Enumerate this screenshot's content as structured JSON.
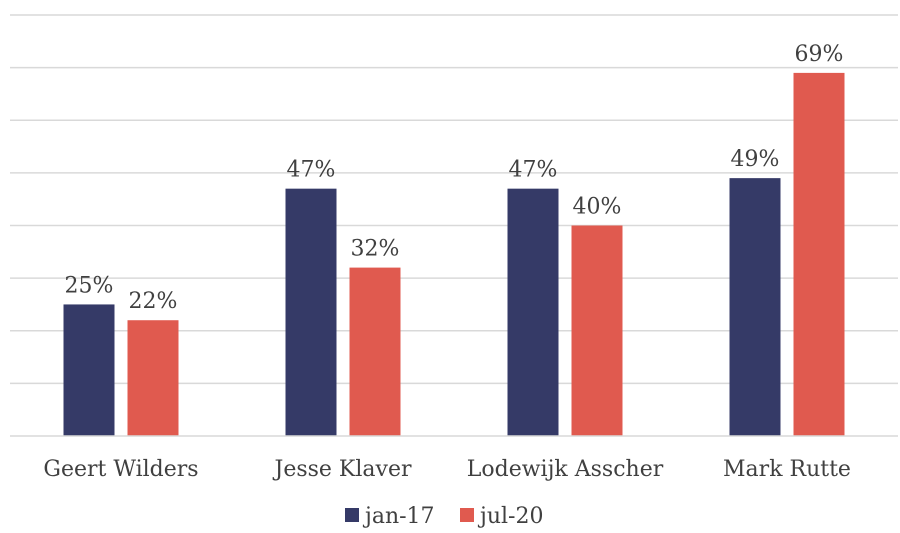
{
  "chart_data": {
    "type": "bar",
    "categories": [
      "Geert Wilders",
      "Jesse Klaver",
      "Lodewijk Asscher",
      "Mark Rutte"
    ],
    "series": [
      {
        "name": "jan-17",
        "values": [
          25,
          47,
          47,
          49
        ],
        "labels": [
          "25%",
          "47%",
          "47%",
          "49%"
        ],
        "color": "#353a67"
      },
      {
        "name": "jul-20",
        "values": [
          22,
          32,
          40,
          69
        ],
        "labels": [
          "22%",
          "32%",
          "40%",
          "69%"
        ],
        "color": "#e05a4f"
      }
    ],
    "ylim": [
      0,
      80
    ],
    "grid": true,
    "legend": "bottom",
    "title": "",
    "xlabel": "",
    "ylabel": ""
  }
}
